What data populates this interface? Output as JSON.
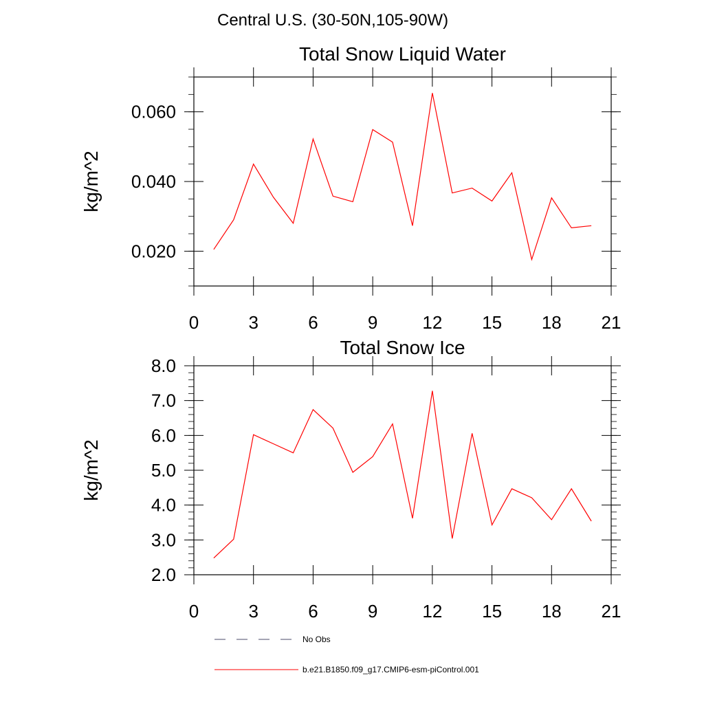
{
  "page_title": "Central U.S. (30-50N,105-90W)",
  "colors": {
    "model": "#ff0000",
    "obs": "#4a4a6a",
    "axis": "#000000"
  },
  "chart_data": [
    {
      "type": "line",
      "title": "Total Snow Liquid Water",
      "ylabel": "kg/m^2",
      "xlabel": "",
      "xlim": [
        0,
        21
      ],
      "ylim": [
        0.01,
        0.07
      ],
      "x_ticks": [
        0,
        3,
        6,
        9,
        12,
        15,
        18,
        21
      ],
      "x_tick_labels": [
        "0",
        "3",
        "6",
        "9",
        "12",
        "15",
        "18",
        "21"
      ],
      "y_ticks": [
        0.02,
        0.04,
        0.06
      ],
      "y_tick_labels": [
        "0.020",
        "0.040",
        "0.060"
      ],
      "y_minor_step": 0.005,
      "x": [
        1,
        2,
        3,
        4,
        5,
        6,
        7,
        8,
        9,
        10,
        11,
        12,
        13,
        14,
        15,
        16,
        17,
        18,
        19,
        20
      ],
      "series": [
        {
          "name": "b.e21.B1850.f09_g17.CMIP6-esm-piControl.001",
          "values": [
            0.0205,
            0.029,
            0.045,
            0.0355,
            0.028,
            0.0522,
            0.0358,
            0.0342,
            0.0549,
            0.0513,
            0.0273,
            0.0654,
            0.0367,
            0.0381,
            0.0344,
            0.0425,
            0.0176,
            0.0353,
            0.0267,
            0.0273
          ]
        }
      ]
    },
    {
      "type": "line",
      "title": "Total Snow Ice",
      "ylabel": "kg/m^2",
      "xlabel": "",
      "xlim": [
        0,
        21
      ],
      "ylim": [
        2.0,
        8.0
      ],
      "x_ticks": [
        0,
        3,
        6,
        9,
        12,
        15,
        18,
        21
      ],
      "x_tick_labels": [
        "0",
        "3",
        "6",
        "9",
        "12",
        "15",
        "18",
        "21"
      ],
      "y_ticks": [
        2.0,
        3.0,
        4.0,
        5.0,
        6.0,
        7.0,
        8.0
      ],
      "y_tick_labels": [
        "2.0",
        "3.0",
        "4.0",
        "5.0",
        "6.0",
        "7.0",
        "8.0"
      ],
      "y_minor_step": 0.2,
      "x": [
        1,
        2,
        3,
        4,
        5,
        6,
        7,
        8,
        9,
        10,
        11,
        12,
        13,
        14,
        15,
        16,
        17,
        18,
        19,
        20
      ],
      "series": [
        {
          "name": "b.e21.B1850.f09_g17.CMIP6-esm-piControl.001",
          "values": [
            2.48,
            3.02,
            6.02,
            5.76,
            5.5,
            6.74,
            6.21,
            4.94,
            5.39,
            6.33,
            3.62,
            7.28,
            3.04,
            6.06,
            3.43,
            4.47,
            4.21,
            3.58,
            4.47,
            3.54
          ]
        }
      ]
    }
  ],
  "legend": [
    {
      "label": "No Obs",
      "style": "dashed"
    },
    {
      "label": "b.e21.B1850.f09_g17.CMIP6-esm-piControl.001",
      "style": "solid"
    }
  ]
}
